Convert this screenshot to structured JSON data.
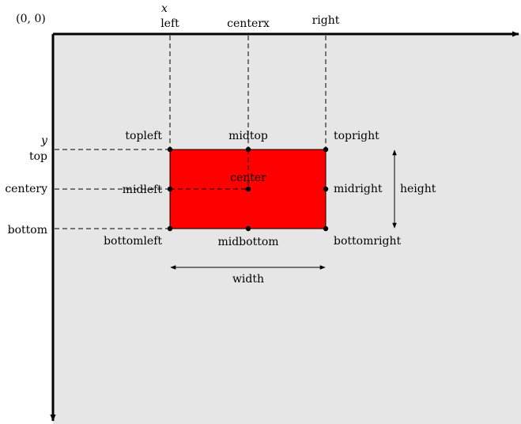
{
  "origin_label": "(0, 0)",
  "x_axis_label": "x",
  "y_axis_label": "y",
  "colors": {
    "canvas": "#e6e6e6",
    "rect": "#ff0000",
    "ink": "#000000",
    "page": "#ffffff"
  },
  "coord_labels": {
    "left": "left",
    "centerx": "centerx",
    "right": "right",
    "top": "top",
    "centery": "centery",
    "bottom": "bottom"
  },
  "point_labels": {
    "topleft": "topleft",
    "midtop": "midtop",
    "topright": "topright",
    "midleft": "midleft",
    "center": "center",
    "midright": "midright",
    "bottomleft": "bottomleft",
    "midbottom": "midbottom",
    "bottomright": "bottomright"
  },
  "dimension_labels": {
    "width": "width",
    "height": "height"
  }
}
